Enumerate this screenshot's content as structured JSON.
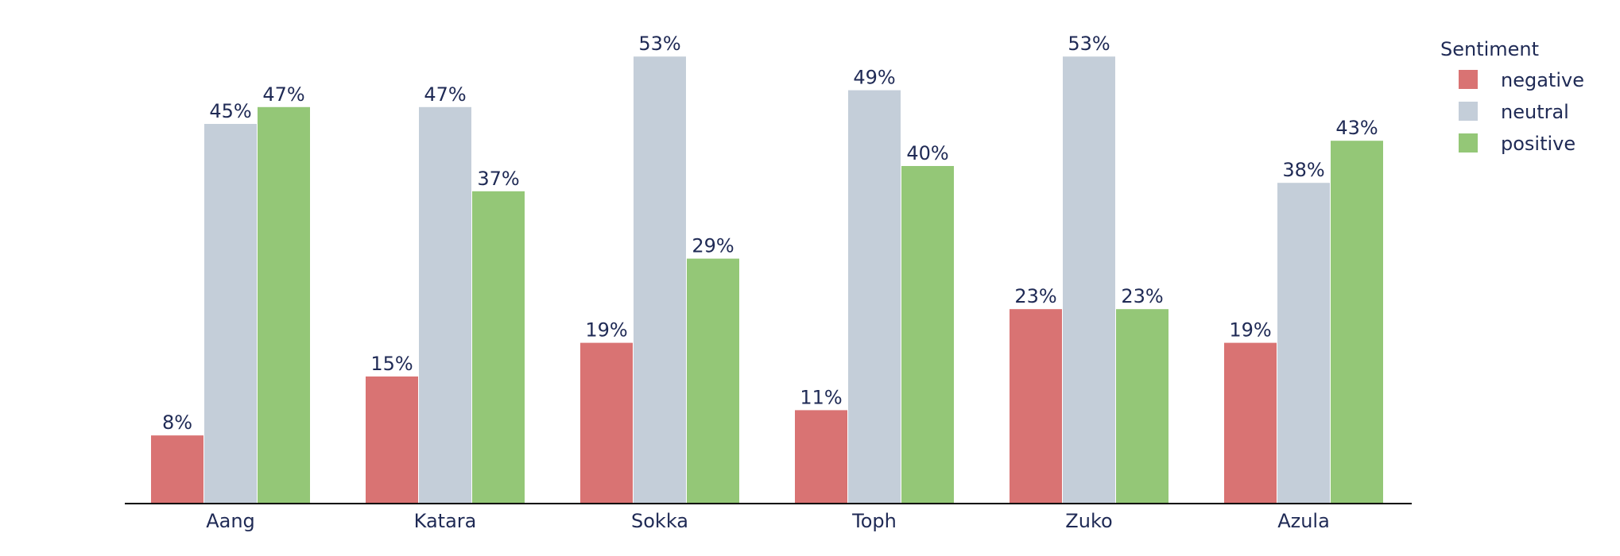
{
  "chart_data": {
    "type": "bar",
    "categories": [
      "Aang",
      "Katara",
      "Sokka",
      "Toph",
      "Zuko",
      "Azula"
    ],
    "series": [
      {
        "name": "negative",
        "color": "#d97373",
        "values": [
          8,
          15,
          19,
          11,
          23,
          19
        ],
        "labels": [
          "8%",
          "15%",
          "19%",
          "11%",
          "23%",
          "19%"
        ]
      },
      {
        "name": "neutral",
        "color": "#c4ced9",
        "values": [
          45,
          47,
          53,
          49,
          53,
          38
        ],
        "labels": [
          "45%",
          "47%",
          "53%",
          "49%",
          "53%",
          "38%"
        ]
      },
      {
        "name": "positive",
        "color": "#94c777",
        "values": [
          47,
          37,
          29,
          40,
          23,
          43
        ],
        "labels": [
          "47%",
          "37%",
          "29%",
          "40%",
          "23%",
          "43%"
        ]
      }
    ],
    "legend": {
      "title": "Sentiment",
      "placement": "top-right"
    },
    "ylim": [
      0,
      56
    ],
    "grid": false,
    "title": "",
    "xlabel": "",
    "ylabel": ""
  }
}
